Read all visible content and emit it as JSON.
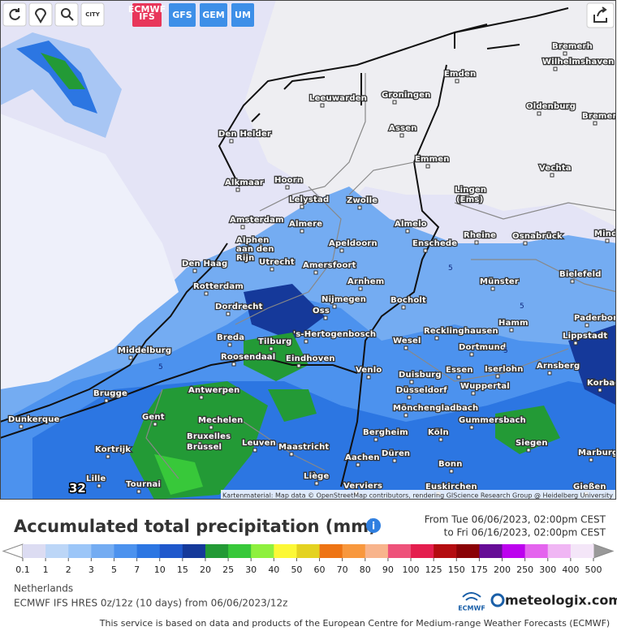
{
  "toolbar": {
    "city_button": "CITY",
    "models": [
      "ECMWF IFS",
      "GFS",
      "GEM",
      "UM"
    ]
  },
  "map": {
    "cities": [
      "Bremerh",
      "Wilhelmshaven",
      "Emden",
      "Leeuwarden",
      "Groningen",
      "Oldenburg",
      "Bremer",
      "Den Helder",
      "Assen",
      "Emmen",
      "Vechta",
      "Alkmaar",
      "Hoorn",
      "Lingen",
      "(Ems)",
      "Lelystad",
      "Zwolle",
      "Amsterdam",
      "Almere",
      "Almelo",
      "Alphen",
      "aan den",
      "Rijn",
      "Rheine",
      "Osnabrück",
      "Mind",
      "Apeldoorn",
      "Enschede",
      "Den Haag",
      "Utrecht",
      "Amersfoort",
      "Bielefeld",
      "Rotterdam",
      "Arnhem",
      "Münster",
      "Nijmegen",
      "Bocholt",
      "Dordrecht",
      "Oss",
      "Hamm",
      "Paderborn",
      "Recklinghausen",
      "Breda",
      "Tilburg",
      "'s-Hertogenbosch",
      "Wesel",
      "Lippstadt",
      "Middelburg",
      "Roosendaal",
      "Eindhoven",
      "Dortmund",
      "Iserlohn",
      "Arnsberg",
      "Venlo",
      "Duisburg",
      "Essen",
      "Korbac",
      "Wuppertal",
      "Brugge",
      "Antwerpen",
      "Düsseldorf",
      "Mönchengladbach",
      "Gent",
      "Dunkerque",
      "Mechelen",
      "Gummersbach",
      "Bruxelles",
      "Brussel",
      "Bergheim",
      "Köln",
      "Leuven",
      "Maastricht",
      "Siegen",
      "Kortrijk",
      "Düren",
      "Marburg",
      "Aachen",
      "Bonn",
      "Lille",
      "Liège",
      "Tournai",
      "Verviers",
      "Euskirchen",
      "Gießen"
    ],
    "contour_labels": [
      5,
      5,
      5,
      5
    ],
    "max_label": 32,
    "attribution": "Kartenmaterial: Map data © OpenStreetMap contributors, rendering GIScience Research Group @ Heidelberg University"
  },
  "panel": {
    "title": "Accumulated total precipitation (mm)",
    "from": "From Tue 06/06/2023, 02:00pm CEST",
    "to": "to Fri 06/16/2023, 02:00pm CEST",
    "legend": {
      "values": [
        0.1,
        1,
        2,
        3,
        5,
        7,
        10,
        15,
        20,
        25,
        30,
        40,
        50,
        60,
        70,
        80,
        90,
        100,
        125,
        150,
        175,
        200,
        250,
        300,
        400,
        500
      ],
      "colors": [
        "#dcdcf2",
        "#bcd6f7",
        "#9cc6f8",
        "#74acf2",
        "#4c92ee",
        "#2c76e2",
        "#1f58cc",
        "#15399a",
        "#239a36",
        "#38c83a",
        "#8ef03e",
        "#fcf836",
        "#e4d220",
        "#ee7414",
        "#f8983e",
        "#f8b48c",
        "#ee527a",
        "#e41e4e",
        "#b40c10",
        "#8a0206",
        "#660c96",
        "#bc02ee",
        "#e464ee",
        "#f0b6f4",
        "#f4e6f8"
      ]
    },
    "region": "Netherlands",
    "model_run": "ECMWF IFS HRES 0z/12z (10 days) from 06/06/2023/12z",
    "ecmwf_logo": "ECMWF",
    "brand": "meteologix.com",
    "footer": "This service is based on data and products of the European Centre for Medium-range Weather Forecasts (ECMWF)"
  }
}
